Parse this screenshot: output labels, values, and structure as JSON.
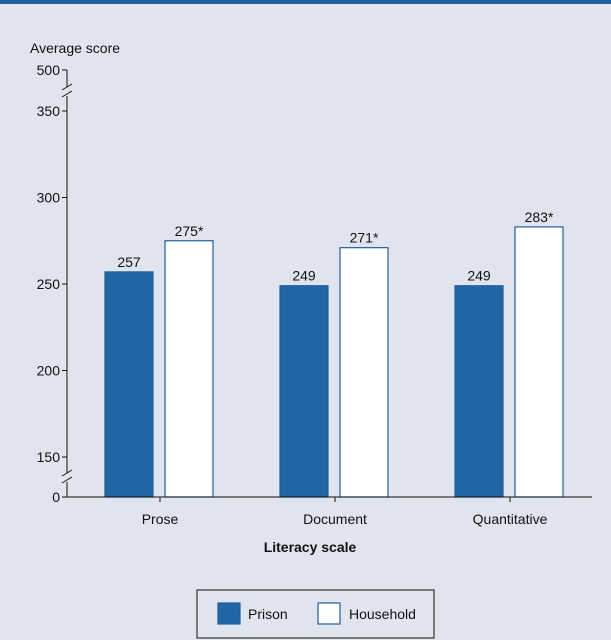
{
  "colors": {
    "background": "#dfe4ef",
    "prison": "#2166a5",
    "household": "#ffffff",
    "bar_stroke": "#1f5e9c",
    "axis": "#111111"
  },
  "chart_data": {
    "type": "bar",
    "title": "",
    "ylabel": "Average score",
    "xlabel": "Literacy scale",
    "categories": [
      "Prose",
      "Document",
      "Quantitative"
    ],
    "series": [
      {
        "name": "Prison",
        "values": [
          257,
          249,
          249
        ],
        "labels": [
          "257",
          "249",
          "249"
        ]
      },
      {
        "name": "Household",
        "values": [
          275,
          271,
          283
        ],
        "labels": [
          "275*",
          "271*",
          "283*"
        ]
      }
    ],
    "y_ticks": [
      "500",
      "350",
      "300",
      "250",
      "200",
      "150",
      "0"
    ],
    "axis_breaks": [
      "between 350 and 500",
      "between 0 and 150"
    ],
    "ylim": [
      150,
      350
    ],
    "grid": false,
    "legend_position": "bottom-center"
  }
}
